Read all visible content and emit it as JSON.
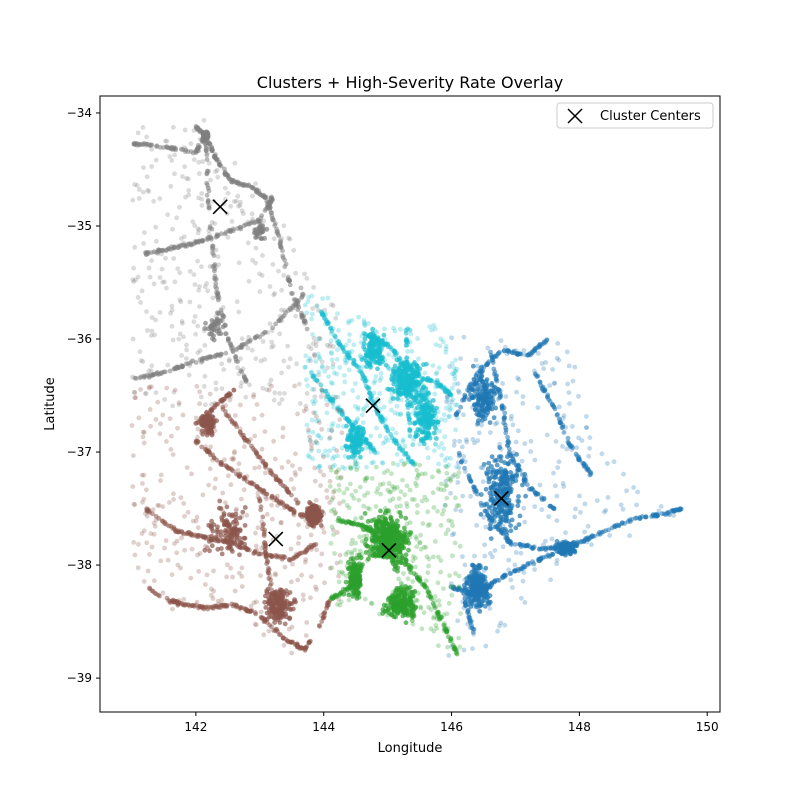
{
  "chart_data": {
    "type": "scatter",
    "title": "Clusters + High-Severity Rate Overlay",
    "xlabel": "Longitude",
    "ylabel": "Latitude",
    "xlim": [
      140.5,
      150.2
    ],
    "ylim": [
      -39.3,
      -33.85
    ],
    "xticks": [
      142,
      144,
      146,
      148,
      150
    ],
    "yticks": [
      -34,
      -35,
      -36,
      -37,
      -38,
      -39
    ],
    "grid": false,
    "legend": {
      "placement": "top-right",
      "entries": [
        "Cluster Centers"
      ]
    },
    "clusters": [
      {
        "color": "#7f7f7f",
        "center": [
          142.38,
          -34.83
        ],
        "hubs": [
          [
            142.15,
            -34.2,
            0.06,
            0.05,
            90
          ],
          [
            143.0,
            -35.05,
            0.12,
            0.1,
            30
          ],
          [
            142.3,
            -35.9,
            0.2,
            0.15,
            40
          ]
        ],
        "extent": [
          141.0,
          144.2,
          -36.6,
          -34.05
        ],
        "lines": [
          [
            [
              142.0,
              -34.12
            ],
            [
              142.15,
              -34.2
            ],
            [
              142.3,
              -34.4
            ],
            [
              142.55,
              -34.6
            ],
            [
              142.85,
              -34.65
            ],
            [
              143.1,
              -34.75
            ],
            [
              143.3,
              -35.1
            ],
            [
              143.5,
              -35.6
            ],
            [
              143.75,
              -35.9
            ]
          ],
          [
            [
              141.2,
              -35.25
            ],
            [
              141.6,
              -35.2
            ],
            [
              142.0,
              -35.15
            ],
            [
              142.5,
              -35.05
            ],
            [
              143.0,
              -34.95
            ],
            [
              143.2,
              -34.75
            ]
          ],
          [
            [
              142.15,
              -34.2
            ],
            [
              142.2,
              -34.8
            ],
            [
              142.3,
              -35.5
            ],
            [
              142.5,
              -36.0
            ],
            [
              142.8,
              -36.4
            ]
          ],
          [
            [
              141.05,
              -36.35
            ],
            [
              141.5,
              -36.3
            ],
            [
              142.0,
              -36.2
            ],
            [
              142.6,
              -36.1
            ],
            [
              143.2,
              -35.9
            ],
            [
              143.7,
              -35.6
            ]
          ],
          [
            [
              141.0,
              -34.27
            ],
            [
              141.5,
              -34.3
            ],
            [
              142.0,
              -34.35
            ],
            [
              142.15,
              -34.2
            ]
          ]
        ]
      },
      {
        "color": "#17becf",
        "center": [
          144.77,
          -36.59
        ],
        "hubs": [
          [
            145.3,
            -36.38,
            0.35,
            0.25,
            220
          ],
          [
            144.8,
            -36.1,
            0.25,
            0.2,
            120
          ],
          [
            145.6,
            -36.7,
            0.25,
            0.3,
            150
          ],
          [
            144.5,
            -36.9,
            0.2,
            0.2,
            100
          ]
        ],
        "extent": [
          143.7,
          146.1,
          -37.15,
          -35.6
        ],
        "lines": [
          [
            [
              143.95,
              -35.75
            ],
            [
              144.25,
              -36.05
            ],
            [
              144.6,
              -36.3
            ],
            [
              144.8,
              -36.6
            ],
            [
              145.1,
              -36.9
            ],
            [
              145.4,
              -37.1
            ]
          ],
          [
            [
              143.8,
              -36.3
            ],
            [
              144.2,
              -36.6
            ],
            [
              144.5,
              -36.8
            ],
            [
              144.8,
              -37.0
            ]
          ],
          [
            [
              144.6,
              -35.95
            ],
            [
              145.0,
              -36.05
            ],
            [
              145.4,
              -36.3
            ],
            [
              145.8,
              -36.4
            ],
            [
              146.0,
              -36.5
            ]
          ],
          [
            [
              145.3,
              -35.9
            ],
            [
              145.3,
              -36.4
            ],
            [
              145.35,
              -36.9
            ]
          ]
        ]
      },
      {
        "color": "#1f77b4",
        "center": [
          146.78,
          -37.41
        ],
        "hubs": [
          [
            146.4,
            -38.2,
            0.25,
            0.25,
            250
          ],
          [
            147.8,
            -37.85,
            0.2,
            0.08,
            120
          ],
          [
            146.8,
            -37.4,
            0.4,
            0.5,
            250
          ],
          [
            146.5,
            -36.5,
            0.3,
            0.3,
            150
          ]
        ],
        "extent": [
          145.9,
          149.7,
          -38.8,
          -35.95
        ],
        "lines": [
          [
            [
              146.05,
              -36.7
            ],
            [
              146.4,
              -36.3
            ],
            [
              146.8,
              -36.1
            ],
            [
              147.2,
              -36.15
            ],
            [
              147.5,
              -36.0
            ]
          ],
          [
            [
              146.1,
              -37.0
            ],
            [
              146.5,
              -37.5
            ],
            [
              146.9,
              -37.8
            ],
            [
              147.3,
              -37.85
            ],
            [
              147.8,
              -37.85
            ],
            [
              148.2,
              -37.75
            ],
            [
              148.8,
              -37.6
            ],
            [
              149.3,
              -37.55
            ],
            [
              149.6,
              -37.5
            ]
          ],
          [
            [
              146.0,
              -38.2
            ],
            [
              146.4,
              -38.25
            ],
            [
              146.8,
              -38.1
            ],
            [
              147.2,
              -38.0
            ],
            [
              147.6,
              -37.9
            ]
          ],
          [
            [
              146.6,
              -36.1
            ],
            [
              146.8,
              -36.6
            ],
            [
              146.9,
              -37.0
            ],
            [
              147.2,
              -37.3
            ],
            [
              147.6,
              -37.5
            ]
          ],
          [
            [
              147.3,
              -36.3
            ],
            [
              147.6,
              -36.6
            ],
            [
              147.9,
              -37.0
            ],
            [
              148.2,
              -37.2
            ]
          ],
          [
            [
              146.2,
              -38.3
            ],
            [
              146.35,
              -38.6
            ]
          ]
        ]
      },
      {
        "color": "#8c564b",
        "center": [
          143.25,
          -37.77
        ],
        "hubs": [
          [
            143.85,
            -37.55,
            0.15,
            0.12,
            220
          ],
          [
            143.3,
            -38.35,
            0.3,
            0.2,
            180
          ],
          [
            142.2,
            -36.75,
            0.15,
            0.12,
            90
          ],
          [
            142.5,
            -37.7,
            0.4,
            0.3,
            120
          ]
        ],
        "extent": [
          141.0,
          144.3,
          -38.85,
          -36.4
        ],
        "lines": [
          [
            [
              141.0,
              -38.1
            ],
            [
              141.5,
              -38.3
            ],
            [
              141.8,
              -38.35
            ],
            [
              142.2,
              -38.38
            ],
            [
              142.6,
              -38.35
            ],
            [
              143.0,
              -38.45
            ],
            [
              143.4,
              -38.65
            ],
            [
              143.7,
              -38.75
            ],
            [
              143.9,
              -38.6
            ],
            [
              144.1,
              -38.3
            ]
          ],
          [
            [
              142.0,
              -36.9
            ],
            [
              142.4,
              -37.1
            ],
            [
              142.8,
              -37.25
            ],
            [
              143.2,
              -37.4
            ],
            [
              143.6,
              -37.55
            ],
            [
              143.9,
              -37.6
            ]
          ],
          [
            [
              142.4,
              -36.6
            ],
            [
              142.8,
              -36.9
            ],
            [
              143.2,
              -37.2
            ],
            [
              143.6,
              -37.45
            ]
          ],
          [
            [
              141.2,
              -37.5
            ],
            [
              141.7,
              -37.7
            ],
            [
              142.1,
              -37.75
            ],
            [
              142.5,
              -37.8
            ],
            [
              143.0,
              -37.9
            ],
            [
              143.5,
              -37.95
            ],
            [
              143.9,
              -37.8
            ]
          ],
          [
            [
              142.0,
              -36.75
            ],
            [
              142.3,
              -36.6
            ],
            [
              142.6,
              -36.45
            ]
          ],
          [
            [
              143.0,
              -37.4
            ],
            [
              143.1,
              -37.9
            ],
            [
              143.2,
              -38.3
            ]
          ]
        ]
      },
      {
        "color": "#2ca02c",
        "center": [
          145.02,
          -37.87
        ],
        "hubs": [
          [
            145.0,
            -37.8,
            0.45,
            0.35,
            450
          ],
          [
            145.2,
            -38.35,
            0.35,
            0.2,
            200
          ],
          [
            144.5,
            -38.1,
            0.2,
            0.25,
            150
          ]
        ],
        "extent": [
          144.1,
          146.15,
          -38.9,
          -37.1
        ],
        "lines": [
          [
            [
              144.1,
              -38.3
            ],
            [
              144.4,
              -38.2
            ],
            [
              144.7,
              -38.1
            ],
            [
              145.0,
              -37.9
            ]
          ],
          [
            [
              145.3,
              -38.0
            ],
            [
              145.6,
              -38.2
            ],
            [
              145.85,
              -38.5
            ],
            [
              146.1,
              -38.8
            ]
          ],
          [
            [
              144.2,
              -37.6
            ],
            [
              144.6,
              -37.65
            ],
            [
              145.0,
              -37.8
            ]
          ]
        ]
      }
    ]
  }
}
